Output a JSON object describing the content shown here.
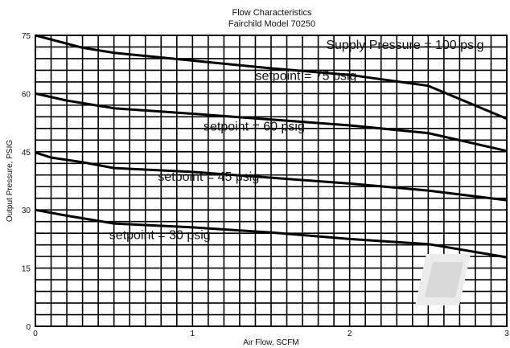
{
  "chart_data": {
    "type": "line",
    "title": "Flow Characteristics",
    "subtitle": "Fairchild Model 70250",
    "xlabel": "Air Flow, SCFM",
    "ylabel": "Output Pressure, PSIG",
    "xlim": [
      0,
      3
    ],
    "ylim": [
      0,
      75
    ],
    "x_ticks": [
      0,
      1,
      2,
      3
    ],
    "y_ticks": [
      0,
      15,
      30,
      45,
      60,
      75
    ],
    "grid": true,
    "series": [
      {
        "name": "setpoint = 75 psig",
        "x": [
          0,
          0.3,
          0.5,
          1.0,
          1.5,
          2.0,
          2.5,
          3.0
        ],
        "y": [
          75,
          71.8,
          70.5,
          68.5,
          66.5,
          64.8,
          62,
          53.5
        ]
      },
      {
        "name": "setpoint = 60 psig",
        "x": [
          0,
          0.2,
          0.5,
          1.0,
          1.5,
          2.0,
          2.5,
          3.0
        ],
        "y": [
          60,
          58.2,
          56.2,
          54.8,
          53.3,
          51.8,
          49.8,
          45.2
        ]
      },
      {
        "name": "setpoint = 45 psig",
        "x": [
          0,
          0.1,
          0.3,
          0.5,
          1.0,
          1.5,
          2.0,
          2.5,
          3.0
        ],
        "y": [
          44.8,
          43.5,
          42.3,
          40.8,
          39.8,
          38.3,
          36.8,
          35,
          32.5
        ]
      },
      {
        "name": "setpoint = 30 psig",
        "x": [
          0,
          0.2,
          0.5,
          1.0,
          1.5,
          2.0,
          2.5,
          3.0
        ],
        "y": [
          30,
          28.5,
          26.5,
          25.5,
          24.2,
          22.5,
          21.2,
          17.8
        ]
      }
    ],
    "annotations": [
      {
        "text": "Supply Pressure = 100 psig",
        "x": 1.85,
        "y": 71.5
      },
      {
        "text": "setpoint = 75 psig",
        "x": 1.4,
        "y": 63.5
      },
      {
        "text": "setpoint = 60 psig",
        "x": 1.07,
        "y": 50.5
      },
      {
        "text": "setpoint = 45 psig",
        "x": 0.78,
        "y": 37.5
      },
      {
        "text": "setpoint = 30 psig",
        "x": 0.47,
        "y": 22.5
      }
    ]
  }
}
